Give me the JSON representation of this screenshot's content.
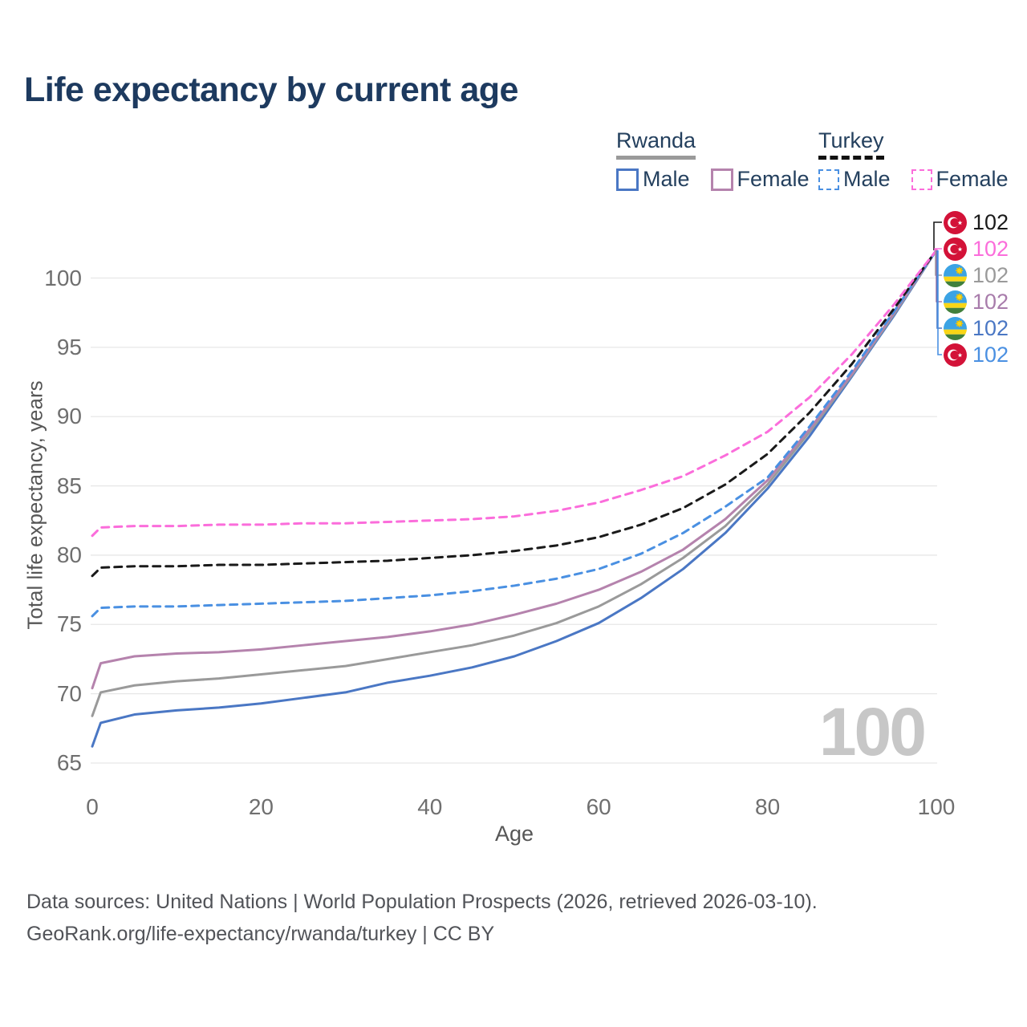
{
  "title": "Life expectancy by current age",
  "legend": {
    "groups": [
      {
        "title": "Rwanda",
        "line_style": "solid",
        "items": [
          {
            "label": "Male",
            "color": "#4a77c4"
          },
          {
            "label": "Female",
            "color": "#b583ad"
          }
        ]
      },
      {
        "title": "Turkey",
        "line_style": "dashed",
        "items": [
          {
            "label": "Male",
            "color": "#4a90e2"
          },
          {
            "label": "Female",
            "color": "#fb6ddb"
          }
        ]
      }
    ]
  },
  "chart_data": {
    "type": "line",
    "title": "Life expectancy by current age",
    "xlabel": "Age",
    "ylabel": "Total life expectancy, years",
    "xlim": [
      0,
      100
    ],
    "ylim": [
      65,
      102
    ],
    "xticks": [
      0,
      20,
      40,
      60,
      80,
      100
    ],
    "yticks": [
      65,
      70,
      75,
      80,
      85,
      90,
      95,
      100
    ],
    "grid": "horizontal",
    "legend_position": "top-right",
    "x": [
      0,
      1,
      5,
      10,
      15,
      20,
      25,
      30,
      35,
      40,
      45,
      50,
      55,
      60,
      65,
      70,
      75,
      80,
      85,
      90,
      95,
      100
    ],
    "series": [
      {
        "name": "Rwanda Male",
        "country": "Rwanda",
        "sex": "Male",
        "color": "#4a77c4",
        "dash": false,
        "end_value": 102,
        "values": [
          66.2,
          67.9,
          68.5,
          68.8,
          69.0,
          69.3,
          69.7,
          70.1,
          70.8,
          71.3,
          71.9,
          72.7,
          73.8,
          75.1,
          76.9,
          79.0,
          81.6,
          84.8,
          88.6,
          92.9,
          97.3,
          102
        ]
      },
      {
        "name": "Rwanda Total",
        "country": "Rwanda",
        "sex": "Total",
        "color": "#9a9a9a",
        "dash": false,
        "end_value": 102,
        "values": [
          68.4,
          70.1,
          70.6,
          70.9,
          71.1,
          71.4,
          71.7,
          72.0,
          72.5,
          73.0,
          73.5,
          74.2,
          75.1,
          76.3,
          77.9,
          79.8,
          82.1,
          85.1,
          88.9,
          93.0,
          97.4,
          102
        ]
      },
      {
        "name": "Rwanda Female",
        "country": "Rwanda",
        "sex": "Female",
        "color": "#b583ad",
        "dash": false,
        "end_value": 102,
        "values": [
          70.4,
          72.2,
          72.7,
          72.9,
          73.0,
          73.2,
          73.5,
          73.8,
          74.1,
          74.5,
          75.0,
          75.7,
          76.5,
          77.5,
          78.8,
          80.4,
          82.6,
          85.4,
          89.1,
          93.1,
          97.5,
          102
        ]
      },
      {
        "name": "Turkey Male",
        "country": "Turkey",
        "sex": "Male",
        "color": "#4a90e2",
        "dash": true,
        "end_value": 102,
        "values": [
          75.6,
          76.2,
          76.3,
          76.3,
          76.4,
          76.5,
          76.6,
          76.7,
          76.9,
          77.1,
          77.4,
          77.8,
          78.3,
          79.0,
          80.1,
          81.6,
          83.5,
          85.6,
          89.3,
          93.3,
          97.6,
          102
        ]
      },
      {
        "name": "Turkey Total",
        "country": "Turkey",
        "sex": "Total",
        "color": "#1a1a1a",
        "dash": true,
        "end_value": 102,
        "values": [
          78.5,
          79.1,
          79.2,
          79.2,
          79.3,
          79.3,
          79.4,
          79.5,
          79.6,
          79.8,
          80.0,
          80.3,
          80.7,
          81.3,
          82.2,
          83.4,
          85.1,
          87.3,
          90.3,
          93.8,
          97.8,
          102
        ]
      },
      {
        "name": "Turkey Female",
        "country": "Turkey",
        "sex": "Female",
        "color": "#fb6ddb",
        "dash": true,
        "end_value": 102,
        "values": [
          81.4,
          82.0,
          82.1,
          82.1,
          82.2,
          82.2,
          82.3,
          82.3,
          82.4,
          82.5,
          82.6,
          82.8,
          83.2,
          83.8,
          84.7,
          85.7,
          87.2,
          88.9,
          91.4,
          94.5,
          98.1,
          102
        ]
      }
    ]
  },
  "end_labels": [
    {
      "flag": "turkey",
      "value": "102",
      "color": "#1a1a1a"
    },
    {
      "flag": "turkey",
      "value": "102",
      "color": "#fb6ddb"
    },
    {
      "flag": "rwanda",
      "value": "102",
      "color": "#9a9a9a"
    },
    {
      "flag": "rwanda",
      "value": "102",
      "color": "#a87cab"
    },
    {
      "flag": "rwanda",
      "value": "102",
      "color": "#4a77c4"
    },
    {
      "flag": "turkey",
      "value": "102",
      "color": "#4a90e2"
    }
  ],
  "watermark": "100",
  "footer": {
    "line1": "Data sources: United Nations | World Population Prospects (2026, retrieved 2026-03-10).",
    "line2": "GeoRank.org/life-expectancy/rwanda/turkey | CC BY"
  }
}
